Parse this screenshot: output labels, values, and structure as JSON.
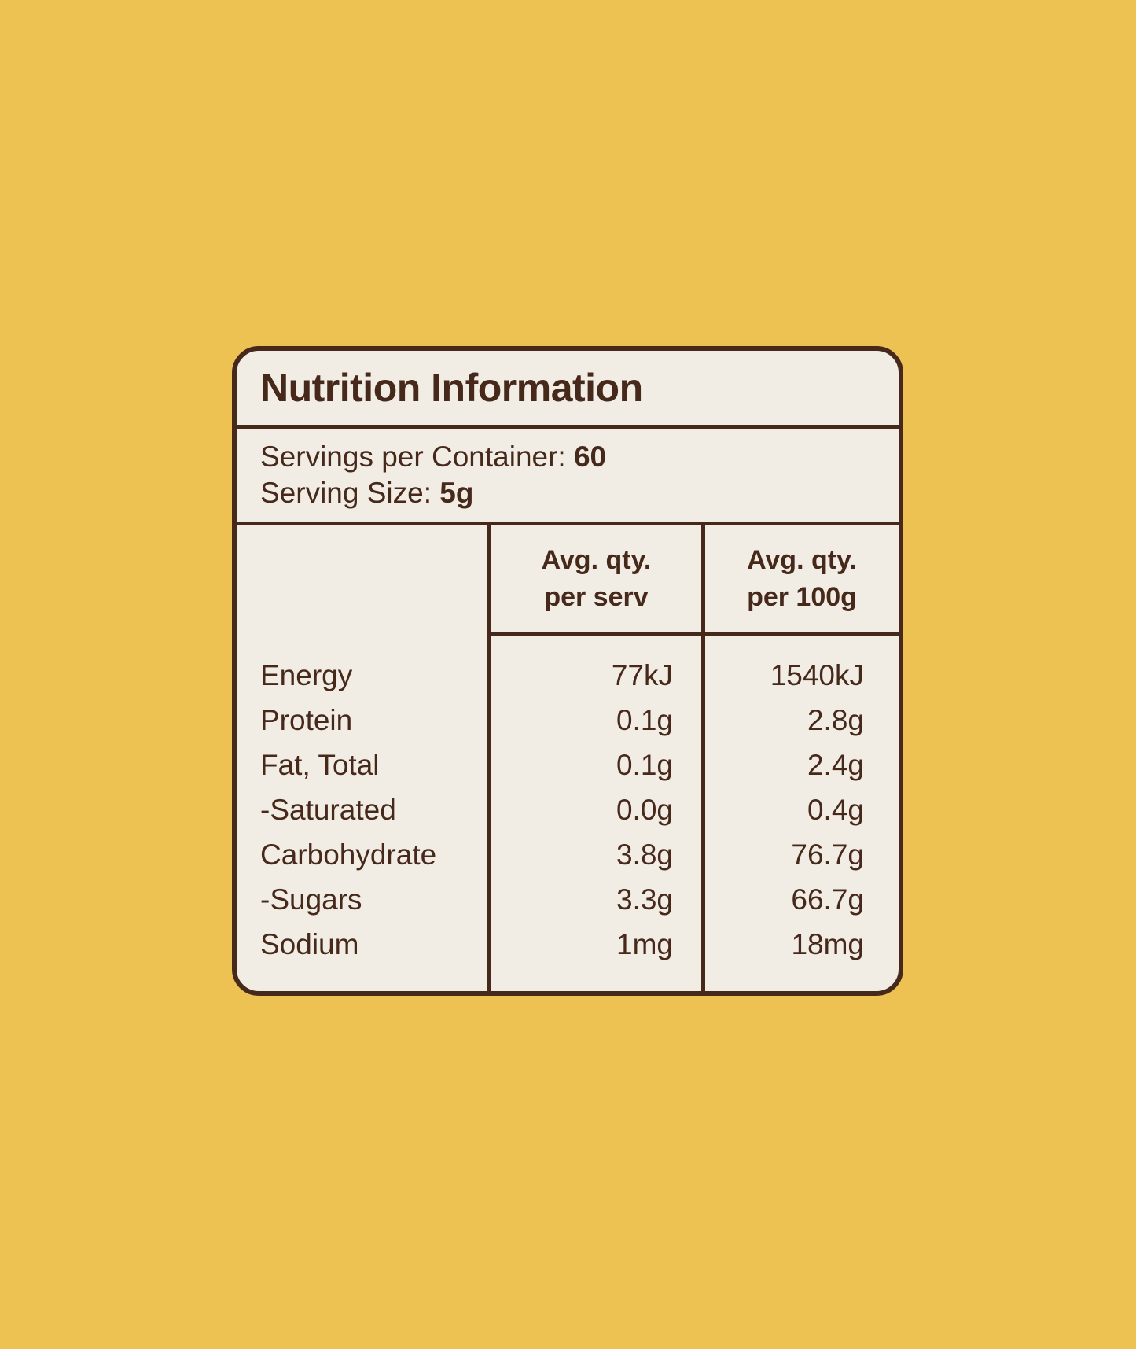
{
  "colors": {
    "background": "#EDC253",
    "card_background": "#F2EDE4",
    "ink": "#46291B"
  },
  "panel": {
    "title": "Nutrition Information",
    "servings_per_container": {
      "label": "Servings per Container:",
      "value": "60"
    },
    "serving_size": {
      "label": "Serving Size:",
      "value": "5g"
    },
    "table": {
      "headers": [
        {
          "line1": "Avg. qty.",
          "line2": "per serv"
        },
        {
          "line1": "Avg. qty.",
          "line2": "per 100g"
        }
      ],
      "rows": [
        {
          "label": "Energy",
          "per_serv": "77kJ",
          "per_100g": "1540kJ"
        },
        {
          "label": "Protein",
          "per_serv": "0.1g",
          "per_100g": "2.8g"
        },
        {
          "label": "Fat, Total",
          "per_serv": "0.1g",
          "per_100g": "2.4g"
        },
        {
          "label": "-Saturated",
          "per_serv": "0.0g",
          "per_100g": "0.4g"
        },
        {
          "label": "Carbohydrate",
          "per_serv": "3.8g",
          "per_100g": "76.7g"
        },
        {
          "label": "-Sugars",
          "per_serv": "3.3g",
          "per_100g": "66.7g"
        },
        {
          "label": "Sodium",
          "per_serv": "1mg",
          "per_100g": "18mg"
        }
      ]
    }
  }
}
